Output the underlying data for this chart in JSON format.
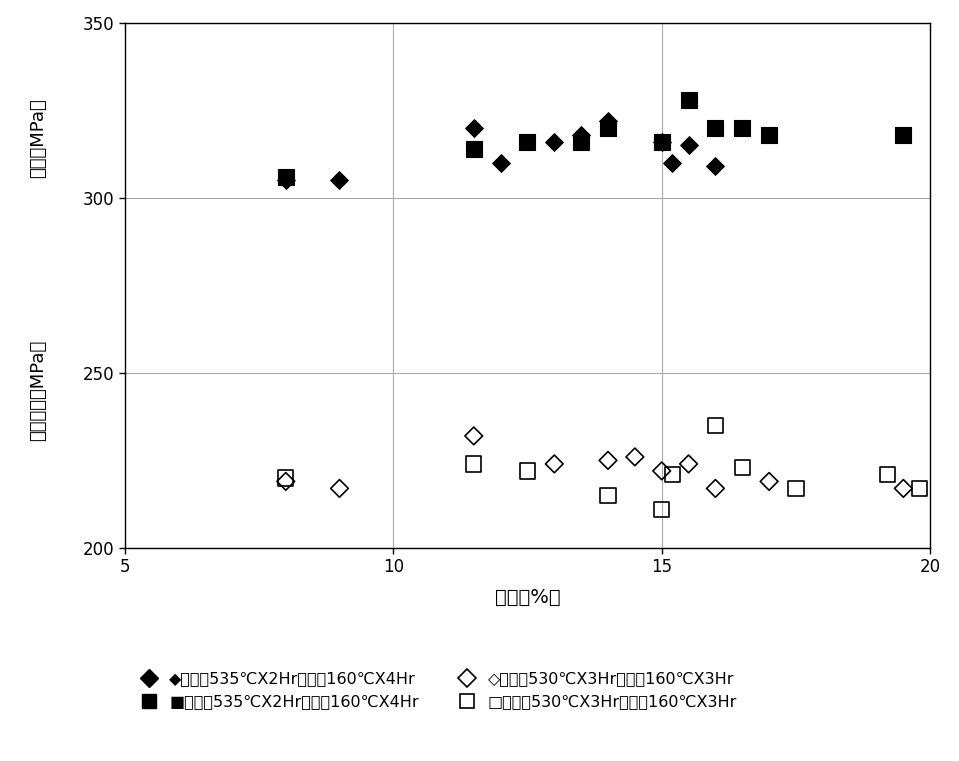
{
  "title": "",
  "xlabel": "伸び（%）",
  "ylabel_top": "耐力（MPa）",
  "ylabel_bottom": "引張強さ（MPa）",
  "xlim": [
    5,
    20
  ],
  "ylim": [
    200,
    350
  ],
  "xticks": [
    5,
    10,
    15,
    20
  ],
  "yticks": [
    200,
    250,
    300,
    350
  ],
  "grid_color": "#aaaaaa",
  "series": [
    {
      "label": "溶体化535℃X2Hr　時効160℃X4Hr",
      "marker": "D",
      "filled": true,
      "color": "#000000",
      "markersize": 9,
      "x": [
        8.0,
        9.0,
        11.5,
        12.0,
        13.0,
        13.5,
        14.0,
        15.0,
        15.2,
        15.5,
        16.0
      ],
      "y": [
        305,
        305,
        320,
        310,
        316,
        318,
        322,
        316,
        310,
        315,
        309
      ]
    },
    {
      "label": "溶体化535℃X2Hr　時効160℃X4Hr",
      "marker": "s",
      "filled": true,
      "color": "#000000",
      "markersize": 11,
      "x": [
        8.0,
        11.5,
        12.5,
        13.5,
        14.0,
        15.0,
        15.5,
        16.0,
        16.5,
        17.0,
        19.5
      ],
      "y": [
        306,
        314,
        316,
        316,
        320,
        316,
        328,
        320,
        320,
        318,
        318
      ]
    },
    {
      "label": "溶体化530℃X3Hr　時効160℃X3Hr",
      "marker": "D",
      "filled": false,
      "color": "#000000",
      "markersize": 9,
      "x": [
        8.0,
        9.0,
        11.5,
        13.0,
        14.0,
        14.5,
        15.0,
        15.5,
        16.0,
        17.0,
        19.5
      ],
      "y": [
        219,
        217,
        232,
        224,
        225,
        226,
        222,
        224,
        217,
        219,
        217
      ]
    },
    {
      "label": "溶体化530℃X3Hr　時効160℃X3Hr",
      "marker": "s",
      "filled": false,
      "color": "#000000",
      "markersize": 11,
      "x": [
        8.0,
        11.5,
        12.5,
        14.0,
        15.0,
        15.2,
        16.0,
        16.5,
        17.5,
        19.2,
        19.8
      ],
      "y": [
        220,
        224,
        222,
        215,
        211,
        221,
        235,
        223,
        217,
        221,
        217
      ]
    }
  ],
  "legend": [
    {
      "label": "溶体化535℃X2Hr　時効160℃X4Hr",
      "marker": "D",
      "filled": true,
      "prefix": "◆"
    },
    {
      "label": "溶体化535℃X2Hr　時効160℃X4Hr",
      "marker": "s",
      "filled": true,
      "prefix": "■"
    },
    {
      "label": "溶体化530℃X3Hr　時効160℃X3Hr",
      "marker": "D",
      "filled": false,
      "prefix": "◇"
    },
    {
      "label": "溶体化530℃X3Hr　時効160℃X3Hr",
      "marker": "s",
      "filled": false,
      "prefix": "□"
    }
  ],
  "background_color": "#ffffff",
  "text_color": "#000000"
}
